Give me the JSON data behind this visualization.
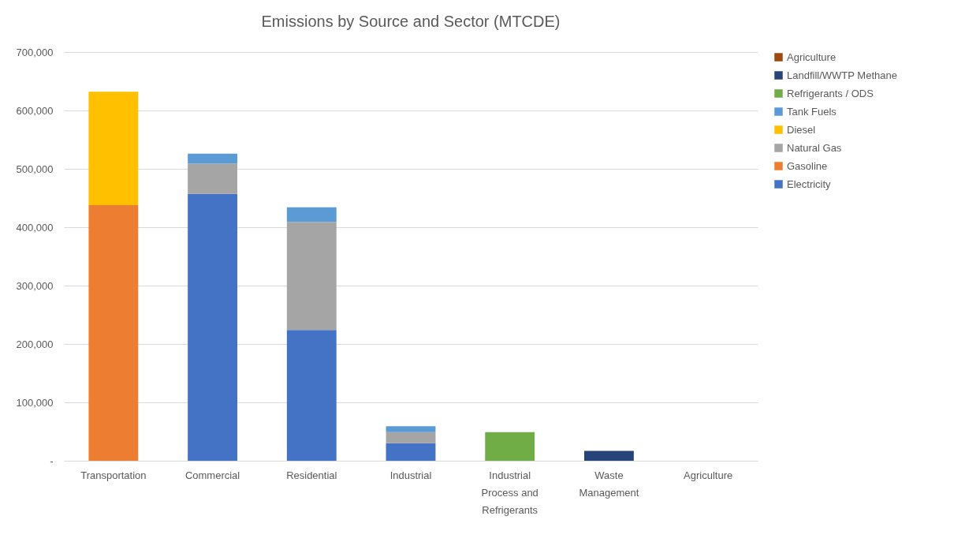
{
  "chart_data": {
    "type": "bar",
    "title": "Emissions by Source and Sector (MTCDE)",
    "stacked": true,
    "categories": [
      "Transportation",
      "Commercial",
      "Residential",
      "Industrial",
      "Industrial Process and Refrigerants",
      "Waste Management",
      "Agriculture"
    ],
    "series": [
      {
        "name": "Electricity",
        "color": "#4472c4",
        "values": [
          null,
          457000,
          224000,
          30000,
          null,
          null,
          null
        ]
      },
      {
        "name": "Gasoline",
        "color": "#ed7d31",
        "values": [
          438000,
          null,
          null,
          null,
          null,
          null,
          null
        ]
      },
      {
        "name": "Natural Gas",
        "color": "#a5a5a5",
        "values": [
          null,
          52000,
          185000,
          19000,
          null,
          null,
          null
        ]
      },
      {
        "name": "Diesel",
        "color": "#ffc000",
        "values": [
          194000,
          null,
          null,
          null,
          null,
          null,
          null
        ]
      },
      {
        "name": "Tank Fuels",
        "color": "#5b9bd5",
        "values": [
          null,
          17000,
          25000,
          10000,
          null,
          null,
          null
        ]
      },
      {
        "name": "Refrigerants / ODS",
        "color": "#70ad47",
        "values": [
          null,
          null,
          null,
          null,
          49000,
          null,
          null
        ]
      },
      {
        "name": "Landfill/WWTP Methane",
        "color": "#264478",
        "values": [
          null,
          null,
          null,
          null,
          null,
          17000,
          null
        ]
      },
      {
        "name": "Agriculture",
        "color": "#9e480e",
        "values": [
          null,
          null,
          null,
          null,
          null,
          null,
          0
        ]
      }
    ],
    "ylim": [
      0,
      700000
    ],
    "yticks": [
      {
        "value": 0,
        "label": "-"
      },
      {
        "value": 100000,
        "label": "100,000"
      },
      {
        "value": 200000,
        "label": "200,000"
      },
      {
        "value": 300000,
        "label": "300,000"
      },
      {
        "value": 400000,
        "label": "400,000"
      },
      {
        "value": 500000,
        "label": "500,000"
      },
      {
        "value": 600000,
        "label": "600,000"
      },
      {
        "value": 700000,
        "label": "700,000"
      }
    ],
    "grid": "y",
    "legend": "right"
  }
}
